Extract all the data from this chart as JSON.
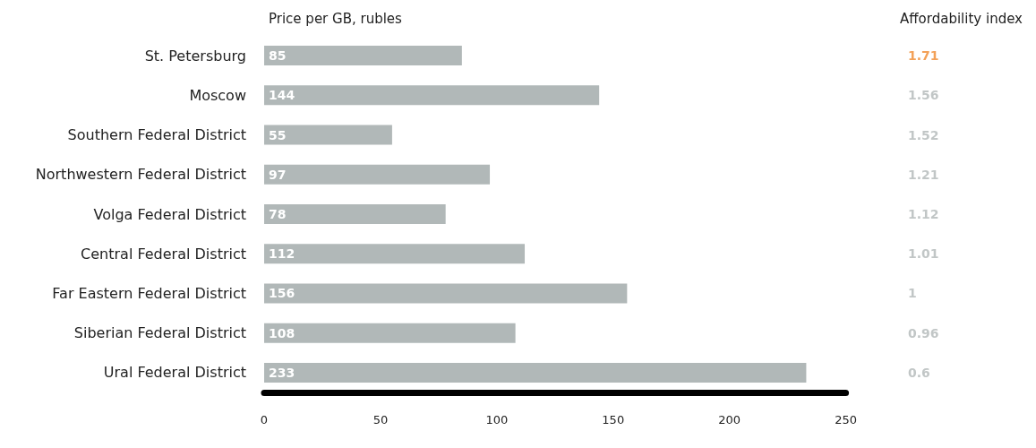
{
  "chart_data": [
    {
      "type": "bar",
      "orientation": "horizontal",
      "title": "Price per GB, rubles",
      "categories": [
        "St. Petersburg",
        "Moscow",
        "Southern Federal District",
        "Northwestern Federal District",
        "Volga Federal District",
        "Central Federal District",
        "Far Eastern Federal District",
        "Siberian Federal District",
        "Ural Federal District"
      ],
      "values": [
        85,
        144,
        55,
        97,
        78,
        112,
        156,
        108,
        233
      ],
      "color": "#b1b8b8",
      "data_labels": true,
      "xlim": [
        0,
        250
      ],
      "xticks": [
        0,
        50,
        100,
        150,
        200,
        250
      ],
      "grid": false
    },
    {
      "type": "other",
      "title": "Affordability index",
      "categories": [
        null,
        null,
        null,
        null,
        null,
        null,
        null,
        null,
        null
      ],
      "values": [
        1.71,
        1.56,
        1.52,
        1.21,
        1.12,
        1.01,
        1,
        0.96,
        0.6
      ],
      "data_labels": true,
      "colors": [
        "#f0892e",
        "#b1b8b8",
        "#b1b8b8",
        "#b1b8b8",
        "#b1b8b8",
        "#b1b8b8",
        "#b1b8b8",
        "#b1b8b8",
        "#b1b8b8"
      ]
    }
  ]
}
